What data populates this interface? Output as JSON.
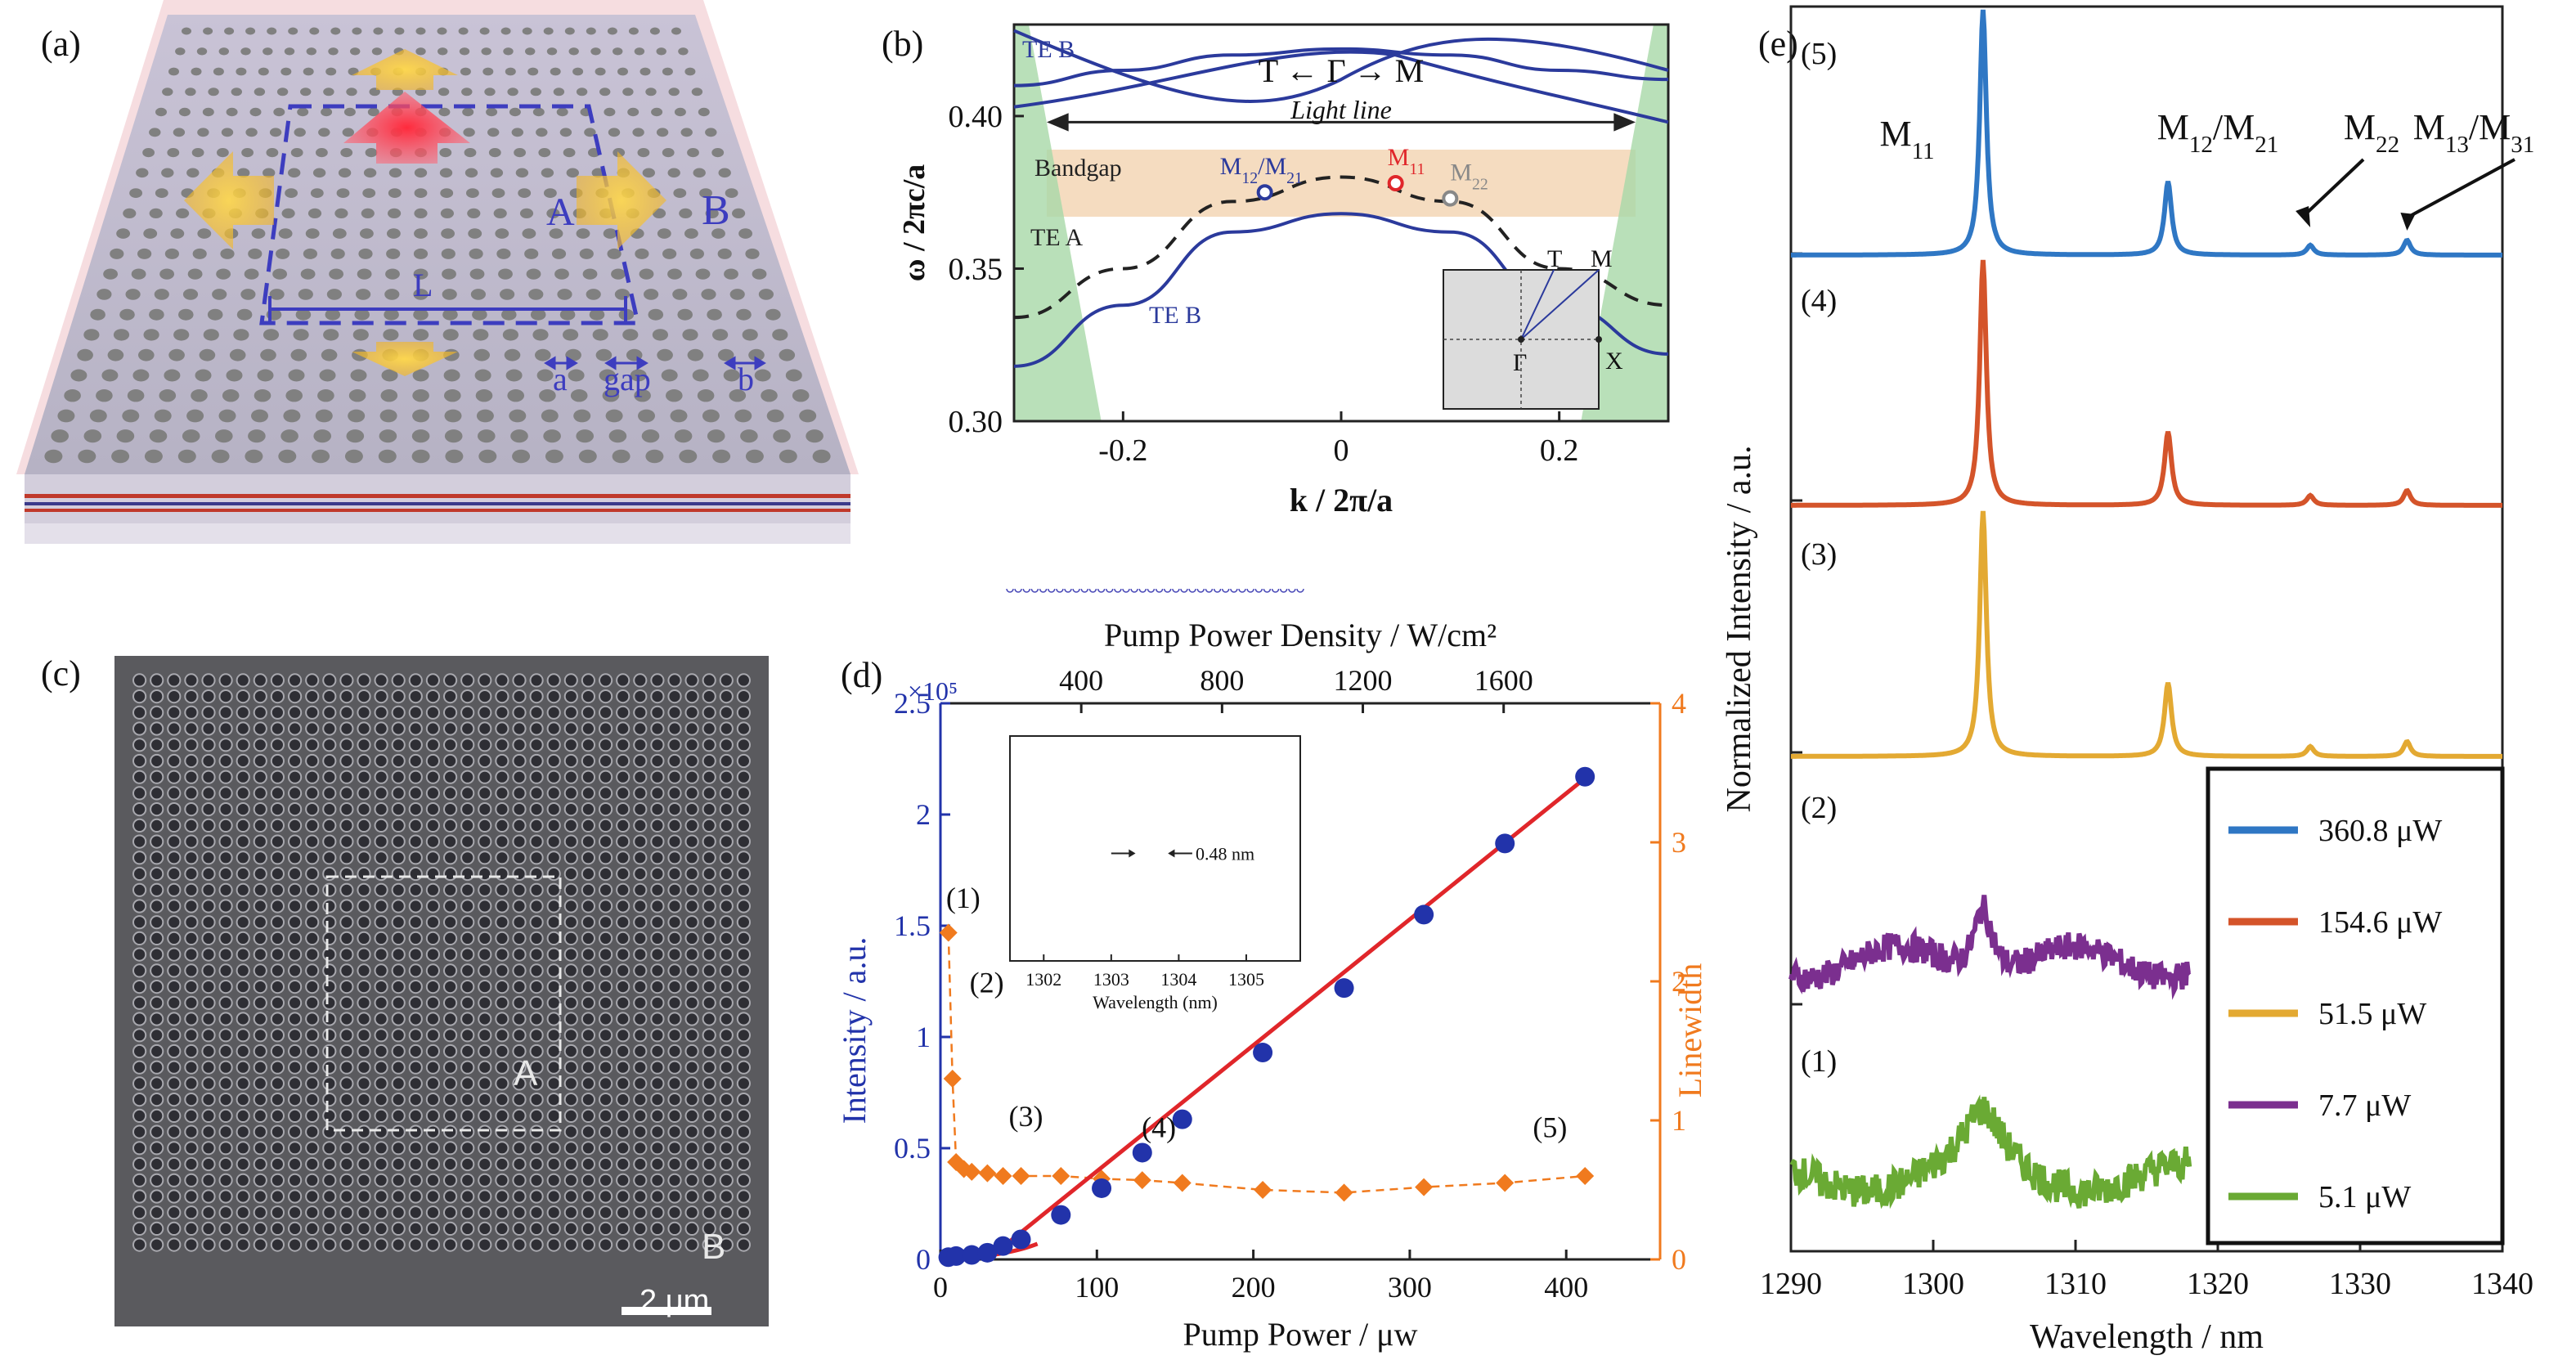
{
  "panels": {
    "a": {
      "label": "(a)",
      "labels": {
        "region_a": "A",
        "region_b": "B",
        "length": "L",
        "lattice_a": "a",
        "gap": "gap",
        "lattice_b": "b"
      }
    },
    "b": {
      "label": "(b)",
      "title": "T ← Γ → M",
      "light_line": "Light line",
      "bandgap": "Bandgap",
      "te_a": "TE A",
      "te_b_top": "TE B",
      "te_b_bottom": "TE B",
      "mode_m12_m21": "M12/M21",
      "mode_m11": "M11",
      "mode_m22": "M22",
      "inset_t": "T",
      "inset_m": "M",
      "inset_gamma": "Γ",
      "inset_x": "X",
      "colors": {
        "bands": "#2b3a9c",
        "bandgap": "#f5dcc0",
        "light_cone": "#a8d8a8",
        "m11": "#e0262a",
        "m22": "#888888"
      }
    },
    "c": {
      "label": "(c)",
      "region_a": "A",
      "region_b": "B",
      "scale": "2 μm"
    },
    "d": {
      "label": "(d)",
      "inset_annotation": "0.48 nm",
      "inset_xlabel": "Wavelength (nm)",
      "points": [
        "(1)",
        "(2)",
        "(3)",
        "(4)",
        "(5)"
      ],
      "colors": {
        "intensity": "#2233aa",
        "fit": "#e0262a",
        "linewidth": "#f07a1e"
      }
    },
    "e": {
      "label": "(e)",
      "traces": [
        "(5)",
        "(4)",
        "(3)",
        "(2)",
        "(1)"
      ],
      "modes": [
        "M11",
        "M12/M21",
        "M22",
        "M13/M31"
      ]
    }
  },
  "chart_data": [
    {
      "type": "line",
      "panel": "b",
      "xlabel": "k / 2π/a",
      "ylabel": "ω / 2πc/a",
      "xlim": [
        -0.3,
        0.3
      ],
      "ylim": [
        0.3,
        0.43
      ],
      "xticks": [
        -0.2,
        0,
        0.2
      ],
      "xtick_labels": [
        "-0.2",
        "0",
        "0.2"
      ],
      "yticks": [
        0.3,
        0.35,
        0.4
      ],
      "ytick_labels": [
        "0.30",
        "0.35",
        "0.40"
      ],
      "bandgap_range": [
        0.367,
        0.389
      ],
      "series": [
        {
          "x": [
            -0.3,
            -0.2,
            -0.1,
            0,
            0.1,
            0.2,
            0.3
          ],
          "y": [
            0.334,
            0.35,
            0.372,
            0.38,
            0.372,
            0.35,
            0.338
          ]
        },
        {
          "x": [
            -0.3,
            -0.2,
            -0.1,
            0,
            0.1,
            0.2,
            0.3
          ],
          "y": [
            0.318,
            0.338,
            0.362,
            0.368,
            0.362,
            0.338,
            0.322
          ]
        },
        {
          "x": [
            -0.3,
            -0.2,
            -0.1,
            0,
            0.1,
            0.2,
            0.3
          ],
          "y": [
            0.41,
            0.415,
            0.42,
            0.422,
            0.42,
            0.415,
            0.412
          ]
        }
      ],
      "marked_modes": [
        {
          "label": "M12/M21",
          "x": -0.07,
          "y": 0.375
        },
        {
          "label": "M11",
          "x": 0.05,
          "y": 0.378
        },
        {
          "label": "M22",
          "x": 0.1,
          "y": 0.373
        }
      ]
    },
    {
      "type": "scatter",
      "panel": "d",
      "xlabel": "Pump Power / μw",
      "x2label": "Pump Power Density / W/cm²",
      "ylabel": "Intensity / a.u.",
      "y2label": "Linewidth",
      "y_multiplier": "×10⁵",
      "xlim": [
        0,
        460
      ],
      "ylim": [
        0,
        2.5
      ],
      "y2lim": [
        0,
        4
      ],
      "xticks": [
        0,
        100,
        200,
        300,
        400
      ],
      "x2ticks": [
        400,
        800,
        1200,
        1600
      ],
      "x2tick_positions": [
        90,
        180,
        270,
        360
      ],
      "yticks": [
        0,
        0.5,
        1,
        1.5,
        2,
        2.5
      ],
      "ytick_labels": [
        "0",
        "0.5",
        "1",
        "1.5",
        "2",
        "2.5"
      ],
      "y2ticks": [
        0,
        1,
        2,
        3,
        4
      ],
      "series": [
        {
          "name": "Intensity",
          "x": [
            5,
            10,
            20,
            30,
            40,
            51.5,
            77,
            103,
            129,
            154.6,
            206,
            258,
            309,
            360.8,
            412
          ],
          "y": [
            0.01,
            0.015,
            0.02,
            0.03,
            0.06,
            0.09,
            0.2,
            0.32,
            0.48,
            0.63,
            0.93,
            1.22,
            1.55,
            1.87,
            2.17
          ]
        },
        {
          "name": "Linewidth",
          "x": [
            5.1,
            7.7,
            10,
            15,
            20,
            30,
            40,
            51.5,
            77,
            103,
            129,
            154.6,
            206,
            258,
            309,
            360.8,
            412
          ],
          "y": [
            2.35,
            1.3,
            0.7,
            0.65,
            0.63,
            0.62,
            0.6,
            0.6,
            0.6,
            0.58,
            0.57,
            0.55,
            0.5,
            0.48,
            0.52,
            0.55,
            0.6
          ]
        }
      ],
      "fit": {
        "x": [
          30,
          415
        ],
        "y": [
          0,
          2.18
        ]
      },
      "inset": {
        "xlabel": "Wavelength (nm)",
        "xlim": [
          1301.5,
          1305.8
        ],
        "xticks": [
          1302,
          1303,
          1304,
          1305
        ],
        "peak": 1303.6,
        "fwhm_label": "0.48 nm"
      }
    },
    {
      "type": "line",
      "panel": "e",
      "xlabel": "Wavelength / nm",
      "ylabel": "Normalized Intensity / a.u.",
      "xlim": [
        1290,
        1340
      ],
      "xticks": [
        1290,
        1300,
        1310,
        1320,
        1330,
        1340
      ],
      "legend_position": "bottom-right",
      "series": [
        {
          "name": "360.8 μW",
          "color": "#2f77c4"
        },
        {
          "name": "154.6 μW",
          "color": "#d4542a"
        },
        {
          "name": "51.5 μW",
          "color": "#e3a932"
        },
        {
          "name": "7.7 μW",
          "color": "#7b2f8f"
        },
        {
          "name": "5.1 μW",
          "color": "#6aaa34"
        }
      ],
      "peaks_nm": {
        "M11": 1303.5,
        "M12/M21": 1316.5,
        "M22": 1326.5,
        "M13/M31": 1333.3
      }
    }
  ]
}
